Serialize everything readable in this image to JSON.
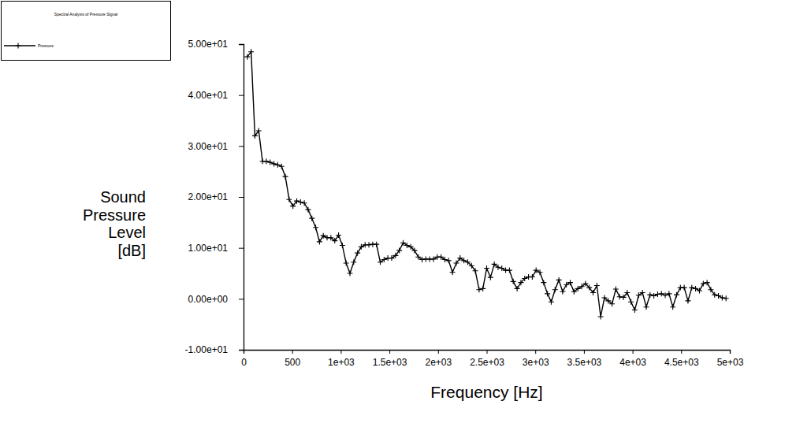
{
  "chart_data": {
    "type": "line",
    "title": "Spectral Analysis of Pressure Signal",
    "xlabel": "Frequency [Hz]",
    "ylabel": "Sound Pressure Level [dB]",
    "x": [
      39,
      78,
      117,
      156,
      195,
      234,
      273,
      313,
      352,
      391,
      430,
      469,
      508,
      547,
      586,
      625,
      664,
      703,
      742,
      781,
      820,
      859,
      898,
      938,
      977,
      1016,
      1055,
      1094,
      1133,
      1172,
      1211,
      1250,
      1289,
      1328,
      1367,
      1406,
      1445,
      1484,
      1523,
      1563,
      1602,
      1641,
      1680,
      1719,
      1758,
      1797,
      1836,
      1875,
      1914,
      1953,
      1992,
      2031,
      2070,
      2109,
      2148,
      2188,
      2227,
      2266,
      2305,
      2344,
      2383,
      2422,
      2461,
      2500,
      2539,
      2578,
      2617,
      2656,
      2695,
      2734,
      2773,
      2813,
      2852,
      2891,
      2930,
      2969,
      3008,
      3047,
      3086,
      3125,
      3164,
      3203,
      3242,
      3281,
      3320,
      3359,
      3398,
      3438,
      3477,
      3516,
      3555,
      3594,
      3633,
      3672,
      3711,
      3750,
      3789,
      3828,
      3867,
      3906,
      3945,
      3984,
      4023,
      4063,
      4102,
      4141,
      4180,
      4219,
      4258,
      4297,
      4336,
      4375,
      4414,
      4453,
      4492,
      4531,
      4570,
      4609,
      4648,
      4688,
      4727,
      4766,
      4805,
      4844,
      4883,
      4922,
      4961
    ],
    "series": [
      {
        "name": "Pressure",
        "color": "#000000",
        "marker": "plus",
        "line_style": "solid",
        "values": [
          47.5,
          48.5,
          32.0,
          33.0,
          27.0,
          27.0,
          26.8,
          26.5,
          26.3,
          26.0,
          24.0,
          19.5,
          18.2,
          19.2,
          19.0,
          18.8,
          17.5,
          15.8,
          14.0,
          11.2,
          12.4,
          12.0,
          12.0,
          11.4,
          12.5,
          10.5,
          7.0,
          5.0,
          7.2,
          9.0,
          10.2,
          10.6,
          10.6,
          10.7,
          10.7,
          7.2,
          7.7,
          8.0,
          8.0,
          8.5,
          9.5,
          11.0,
          10.5,
          10.2,
          9.5,
          8.2,
          7.7,
          7.8,
          7.8,
          7.8,
          8.2,
          8.2,
          7.7,
          7.5,
          5.2,
          7.0,
          8.0,
          7.5,
          7.2,
          6.5,
          5.5,
          1.8,
          2.0,
          6.0,
          4.2,
          6.8,
          6.2,
          6.0,
          5.6,
          5.6,
          3.4,
          2.0,
          3.2,
          4.0,
          4.3,
          4.3,
          5.6,
          5.2,
          3.2,
          1.0,
          -0.6,
          1.8,
          3.7,
          1.4,
          2.8,
          3.2,
          1.4,
          2.0,
          2.4,
          3.0,
          2.2,
          1.2,
          2.6,
          -3.5,
          0.2,
          -0.4,
          -1.0,
          1.9,
          0.4,
          0.3,
          1.2,
          -0.6,
          -2.2,
          0.7,
          1.2,
          -1.6,
          0.8,
          0.6,
          0.9,
          1.0,
          0.7,
          1.0,
          -1.6,
          0.8,
          2.2,
          2.2,
          -0.4,
          2.2,
          2.0,
          1.6,
          3.0,
          3.2,
          1.8,
          0.8,
          0.6,
          0.2,
          0.1
        ]
      }
    ],
    "xlim": [
      0,
      5000
    ],
    "ylim": [
      -10,
      50
    ],
    "xticks": [
      0,
      500,
      {
        "value": 1000,
        "label": "1e+03"
      },
      {
        "value": 1500,
        "label": "1.5e+03"
      },
      {
        "value": 2000,
        "label": "2e+03"
      },
      {
        "value": 2500,
        "label": "2.5e+03"
      },
      {
        "value": 3000,
        "label": "3e+03"
      },
      {
        "value": 3500,
        "label": "3.5e+03"
      },
      {
        "value": 4000,
        "label": "4e+03"
      },
      {
        "value": 4500,
        "label": "4.5e+03"
      },
      {
        "value": 5000,
        "label": "5e+03"
      }
    ],
    "yticks": [
      {
        "value": -10,
        "label": "-1.00e+01"
      },
      {
        "value": 0,
        "label": "0.00e+00"
      },
      {
        "value": 10,
        "label": "1.00e+01"
      },
      {
        "value": 20,
        "label": "2.00e+01"
      },
      {
        "value": 30,
        "label": "3.00e+01"
      },
      {
        "value": 40,
        "label": "4.00e+01"
      },
      {
        "value": 50,
        "label": "5.00e+01"
      }
    ],
    "grid": false,
    "legend": "upper left"
  }
}
